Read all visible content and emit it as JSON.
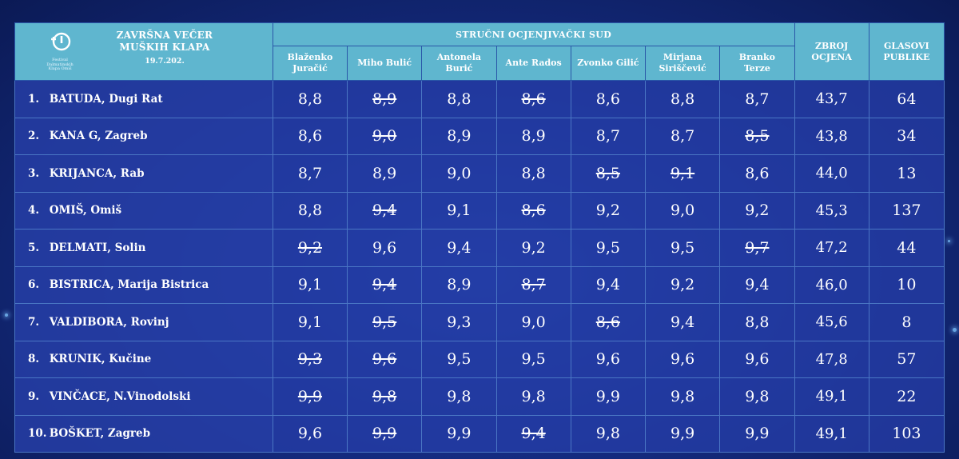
{
  "header": {
    "event_title": "ZAVRŠNA VEČER MUŠKIH KLAPA",
    "date": "19.7.202.",
    "logo_text": "Festival Dalmatinskih Klapa Omiš",
    "jury_label": "STRUČNI OCJENJIVAČKI SUD",
    "sum_label": "ZBROJ OCJENA",
    "votes_label": "GLASOVI PUBLIKE"
  },
  "judges": [
    "Blaženko Juračić",
    "Miho Bulić",
    "Antonela Burić",
    "Ante Rados",
    "Zvonko Gilić",
    "Mirjana Siriščević",
    "Branko Terze"
  ],
  "rows": [
    {
      "rank": "1.",
      "name": "BATUDA, Dugi Rat",
      "scores": [
        "8,8",
        "8,9",
        "8,8",
        "8,6",
        "8,6",
        "8,8",
        "8,7"
      ],
      "struck": [
        false,
        true,
        false,
        true,
        false,
        false,
        false
      ],
      "sum": "43,7",
      "votes": "64"
    },
    {
      "rank": "2.",
      "name": "KANA G, Zagreb",
      "scores": [
        "8,6",
        "9,0",
        "8,9",
        "8,9",
        "8,7",
        "8,7",
        "8,5"
      ],
      "struck": [
        false,
        true,
        false,
        false,
        false,
        false,
        true
      ],
      "sum": "43,8",
      "votes": "34"
    },
    {
      "rank": "3.",
      "name": "KRIJANCA, Rab",
      "scores": [
        "8,7",
        "8,9",
        "9,0",
        "8,8",
        "8,5",
        "9,1",
        "8,6"
      ],
      "struck": [
        false,
        false,
        false,
        false,
        true,
        true,
        false
      ],
      "sum": "44,0",
      "votes": "13"
    },
    {
      "rank": "4.",
      "name": "OMIŠ, Omiš",
      "scores": [
        "8,8",
        "9,4",
        "9,1",
        "8,6",
        "9,2",
        "9,0",
        "9,2"
      ],
      "struck": [
        false,
        true,
        false,
        true,
        false,
        false,
        false
      ],
      "sum": "45,3",
      "votes": "137"
    },
    {
      "rank": "5.",
      "name": "DELMATI, Solin",
      "scores": [
        "9,2",
        "9,6",
        "9,4",
        "9,2",
        "9,5",
        "9,5",
        "9,7"
      ],
      "struck": [
        true,
        false,
        false,
        false,
        false,
        false,
        true
      ],
      "sum": "47,2",
      "votes": "44"
    },
    {
      "rank": "6.",
      "name": "BISTRICA, Marija Bistrica",
      "scores": [
        "9,1",
        "9,4",
        "8,9",
        "8,7",
        "9,4",
        "9,2",
        "9,4"
      ],
      "struck": [
        false,
        true,
        false,
        true,
        false,
        false,
        false
      ],
      "sum": "46,0",
      "votes": "10"
    },
    {
      "rank": "7.",
      "name": "VALDIBORA, Rovinj",
      "scores": [
        "9,1",
        "9,5",
        "9,3",
        "9,0",
        "8,6",
        "9,4",
        "8,8"
      ],
      "struck": [
        false,
        true,
        false,
        false,
        true,
        false,
        false
      ],
      "sum": "45,6",
      "votes": "8"
    },
    {
      "rank": "8.",
      "name": "KRUNIK, Kučine",
      "scores": [
        "9,3",
        "9,6",
        "9,5",
        "9,5",
        "9,6",
        "9,6",
        "9,6"
      ],
      "struck": [
        true,
        true,
        false,
        false,
        false,
        false,
        false
      ],
      "sum": "47,8",
      "votes": "57"
    },
    {
      "rank": "9.",
      "name": "VINČACE, N.Vinodolski",
      "scores": [
        "9,9",
        "9,8",
        "9,8",
        "9,8",
        "9,9",
        "9,8",
        "9,8"
      ],
      "struck": [
        true,
        true,
        false,
        false,
        false,
        false,
        false
      ],
      "sum": "49,1",
      "votes": "22"
    },
    {
      "rank": "10.",
      "name": "BOŠKET, Zagreb",
      "scores": [
        "9,6",
        "9,9",
        "9,9",
        "9,4",
        "9,8",
        "9,9",
        "9,9"
      ],
      "struck": [
        false,
        true,
        false,
        true,
        false,
        false,
        false
      ],
      "sum": "49,1",
      "votes": "103"
    }
  ]
}
